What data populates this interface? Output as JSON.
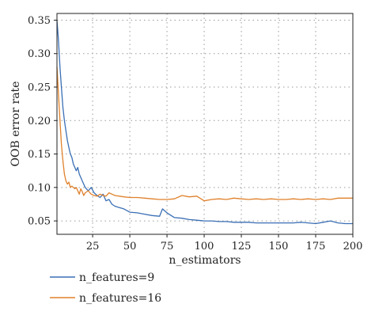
{
  "chart_data": {
    "type": "line",
    "title": "",
    "xlabel": "n_estimators",
    "ylabel": "OOB error rate",
    "xlim": [
      1,
      200
    ],
    "ylim": [
      0.03,
      0.36
    ],
    "xticks": [
      25,
      50,
      75,
      100,
      125,
      150,
      175,
      200
    ],
    "yticks": [
      0.05,
      0.1,
      0.15,
      0.2,
      0.25,
      0.3,
      0.35
    ],
    "ytick_labels": [
      "0.05",
      "0.10",
      "0.15",
      "0.20",
      "0.25",
      "0.30",
      "0.35"
    ],
    "grid": true,
    "legend_position": "below",
    "series": [
      {
        "name": "n_features=9",
        "color": "#3a6fb5",
        "x": [
          1,
          2,
          3,
          4,
          5,
          6,
          7,
          8,
          9,
          10,
          11,
          12,
          13,
          14,
          15,
          16,
          17,
          18,
          19,
          20,
          22,
          24,
          26,
          28,
          30,
          32,
          34,
          36,
          38,
          40,
          43,
          46,
          50,
          55,
          60,
          65,
          70,
          72,
          75,
          80,
          85,
          90,
          95,
          100,
          105,
          110,
          115,
          120,
          125,
          130,
          135,
          140,
          145,
          150,
          155,
          160,
          165,
          170,
          175,
          180,
          185,
          190,
          195,
          200
        ],
        "y": [
          0.35,
          0.32,
          0.28,
          0.25,
          0.22,
          0.2,
          0.185,
          0.17,
          0.16,
          0.15,
          0.145,
          0.135,
          0.13,
          0.125,
          0.13,
          0.12,
          0.115,
          0.11,
          0.105,
          0.1,
          0.095,
          0.1,
          0.092,
          0.088,
          0.085,
          0.09,
          0.08,
          0.082,
          0.075,
          0.072,
          0.07,
          0.068,
          0.063,
          0.062,
          0.06,
          0.058,
          0.057,
          0.068,
          0.062,
          0.055,
          0.054,
          0.052,
          0.051,
          0.05,
          0.05,
          0.049,
          0.049,
          0.048,
          0.048,
          0.048,
          0.047,
          0.047,
          0.047,
          0.047,
          0.047,
          0.047,
          0.048,
          0.047,
          0.046,
          0.048,
          0.05,
          0.047,
          0.046,
          0.046
        ]
      },
      {
        "name": "n_features=16",
        "color": "#e0812b",
        "x": [
          1,
          2,
          3,
          4,
          5,
          6,
          7,
          8,
          9,
          10,
          11,
          12,
          13,
          14,
          15,
          16,
          17,
          18,
          19,
          20,
          22,
          24,
          26,
          28,
          30,
          32,
          34,
          36,
          38,
          40,
          43,
          46,
          50,
          55,
          60,
          65,
          70,
          75,
          80,
          85,
          90,
          95,
          100,
          105,
          110,
          115,
          120,
          125,
          130,
          135,
          140,
          145,
          150,
          155,
          160,
          165,
          170,
          175,
          180,
          185,
          190,
          195,
          200
        ],
        "y": [
          0.28,
          0.24,
          0.2,
          0.165,
          0.14,
          0.12,
          0.11,
          0.105,
          0.108,
          0.1,
          0.102,
          0.1,
          0.098,
          0.1,
          0.095,
          0.09,
          0.098,
          0.094,
          0.088,
          0.092,
          0.095,
          0.09,
          0.088,
          0.087,
          0.09,
          0.088,
          0.087,
          0.092,
          0.09,
          0.088,
          0.087,
          0.086,
          0.085,
          0.085,
          0.084,
          0.083,
          0.082,
          0.082,
          0.083,
          0.088,
          0.086,
          0.087,
          0.08,
          0.082,
          0.083,
          0.082,
          0.084,
          0.083,
          0.082,
          0.083,
          0.082,
          0.083,
          0.082,
          0.082,
          0.083,
          0.082,
          0.083,
          0.082,
          0.083,
          0.082,
          0.084,
          0.084,
          0.084
        ]
      }
    ]
  }
}
